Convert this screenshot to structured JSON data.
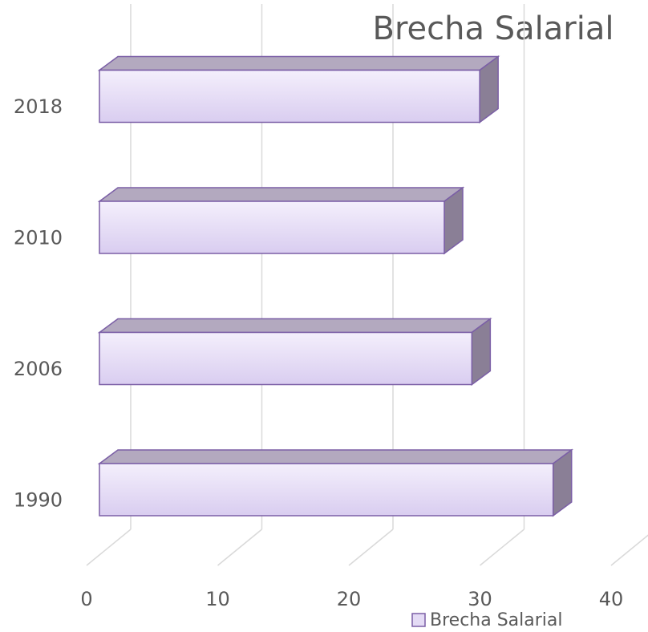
{
  "chart_data": {
    "type": "bar3d_horizontal",
    "title": "Brecha Salarial",
    "categories": [
      "1990",
      "2006",
      "2010",
      "2018"
    ],
    "series": [
      {
        "name": "Brecha Salarial",
        "color": "#e4dbf5",
        "values": [
          34.6,
          28.4,
          26.3,
          29.0
        ]
      }
    ],
    "xlim": [
      0,
      40
    ],
    "xticks": [
      0,
      10,
      20,
      30,
      40
    ],
    "grid": true,
    "legend": "bottom"
  }
}
